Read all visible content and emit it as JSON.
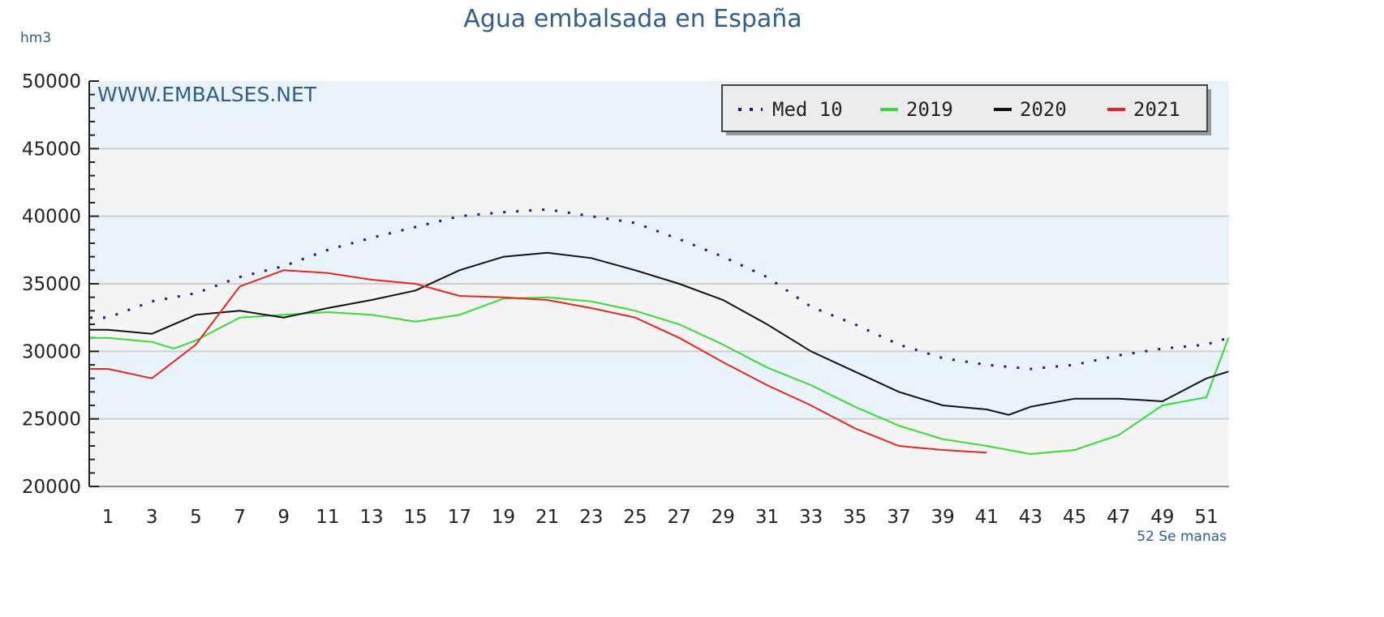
{
  "chart_data": {
    "type": "line",
    "title": "Agua embalsada en España",
    "ylabel": "hm3",
    "xlabel": "52 Se manas",
    "watermark": "WWW.EMBALSES.NET",
    "ylim": [
      20000,
      50000
    ],
    "xlim": [
      1,
      52
    ],
    "yticks": [
      "50000",
      "45000",
      "40000",
      "35000",
      "30000",
      "25000",
      "20000"
    ],
    "xticks": [
      "1",
      "3",
      "5",
      "7",
      "9",
      "11",
      "13",
      "15",
      "17",
      "19",
      "21",
      "23",
      "25",
      "27",
      "29",
      "31",
      "33",
      "35",
      "37",
      "39",
      "41",
      "43",
      "45",
      "47",
      "49",
      "51"
    ],
    "grid": true,
    "legend_position": "top-right",
    "series": [
      {
        "name": "Med 10",
        "color": "#1a1a8c",
        "style": "dotted",
        "x": [
          1,
          3,
          5,
          7,
          9,
          11,
          13,
          15,
          17,
          19,
          21,
          23,
          25,
          27,
          29,
          31,
          33,
          35,
          37,
          39,
          41,
          43,
          45,
          47,
          49,
          51,
          52
        ],
        "y": [
          32500,
          33700,
          34300,
          35500,
          36300,
          37500,
          38400,
          39200,
          40000,
          40300,
          40500,
          40000,
          39500,
          38300,
          37000,
          35500,
          33300,
          32000,
          30500,
          29500,
          29000,
          28700,
          29000,
          29700,
          30200,
          30500,
          31000
        ]
      },
      {
        "name": "2019",
        "color": "#33dd33",
        "style": "solid",
        "x": [
          1,
          3,
          4,
          5,
          7,
          9,
          11,
          13,
          15,
          17,
          19,
          21,
          23,
          25,
          27,
          29,
          31,
          33,
          35,
          37,
          39,
          41,
          43,
          45,
          47,
          49,
          51,
          52
        ],
        "y": [
          31000,
          30700,
          30200,
          30800,
          32500,
          32700,
          32900,
          32700,
          32200,
          32700,
          33900,
          34000,
          33700,
          33000,
          32000,
          30500,
          28800,
          27500,
          25900,
          24500,
          23500,
          23000,
          22400,
          22700,
          23800,
          26000,
          26600,
          31000
        ]
      },
      {
        "name": "2020",
        "color": "#111111",
        "style": "solid",
        "x": [
          1,
          3,
          5,
          7,
          9,
          11,
          13,
          15,
          17,
          19,
          21,
          23,
          25,
          27,
          29,
          31,
          33,
          35,
          37,
          39,
          41,
          42,
          43,
          45,
          47,
          49,
          51,
          52
        ],
        "y": [
          31600,
          31300,
          32700,
          33000,
          32500,
          33200,
          33800,
          34500,
          36000,
          37000,
          37300,
          36900,
          36000,
          35000,
          33800,
          32000,
          30000,
          28500,
          27000,
          26000,
          25700,
          25300,
          25900,
          26500,
          26500,
          26300,
          28000,
          28500
        ]
      },
      {
        "name": "2021",
        "color": "#ee2222",
        "style": "solid",
        "x": [
          1,
          3,
          5,
          7,
          9,
          11,
          13,
          15,
          17,
          19,
          21,
          23,
          25,
          27,
          29,
          31,
          33,
          35,
          37,
          39,
          41
        ],
        "y": [
          28700,
          28000,
          30500,
          34800,
          36000,
          35800,
          35300,
          35000,
          34100,
          34000,
          33800,
          33200,
          32500,
          31000,
          29200,
          27500,
          26000,
          24300,
          23000,
          22700,
          22500
        ]
      }
    ]
  }
}
